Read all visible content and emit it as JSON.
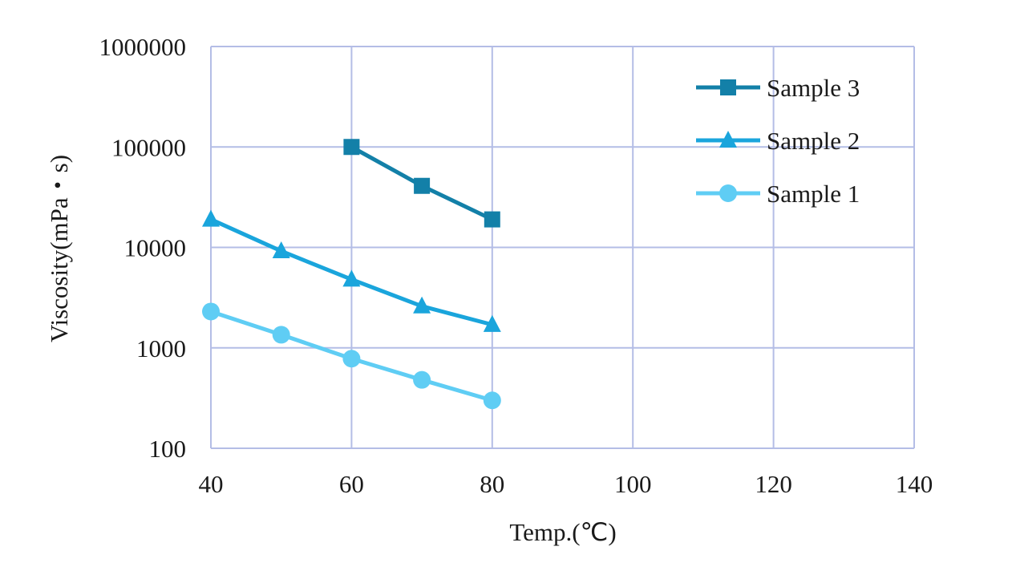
{
  "chart_data": {
    "type": "line",
    "xlabel": "Temp.(℃)",
    "ylabel": "Viscosity(mPa・s)",
    "x_ticks": [
      "40",
      "60",
      "80",
      "100",
      "120",
      "140"
    ],
    "y_ticks": [
      "100",
      "1000",
      "10000",
      "100000",
      "1000000"
    ],
    "xlim": [
      40,
      140
    ],
    "ylim": [
      100,
      1000000
    ],
    "y_scale": "log",
    "grid": true,
    "legend_position": "top-right",
    "series": [
      {
        "name": "Sample 3",
        "marker": "square",
        "color": "#1380a8",
        "x": [
          60,
          70,
          80
        ],
        "y": [
          100000,
          41000,
          19000
        ]
      },
      {
        "name": "Sample 2",
        "marker": "triangle",
        "color": "#1aa5dc",
        "x": [
          40,
          50,
          60,
          70,
          80
        ],
        "y": [
          19000,
          9200,
          4800,
          2600,
          1700
        ]
      },
      {
        "name": "Sample 1",
        "marker": "circle",
        "color": "#5fcdf4",
        "x": [
          40,
          50,
          60,
          70,
          80
        ],
        "y": [
          2300,
          1350,
          780,
          480,
          300
        ]
      }
    ]
  },
  "colors": {
    "grid": "#b4bde6",
    "text": "#1a1a1a"
  }
}
